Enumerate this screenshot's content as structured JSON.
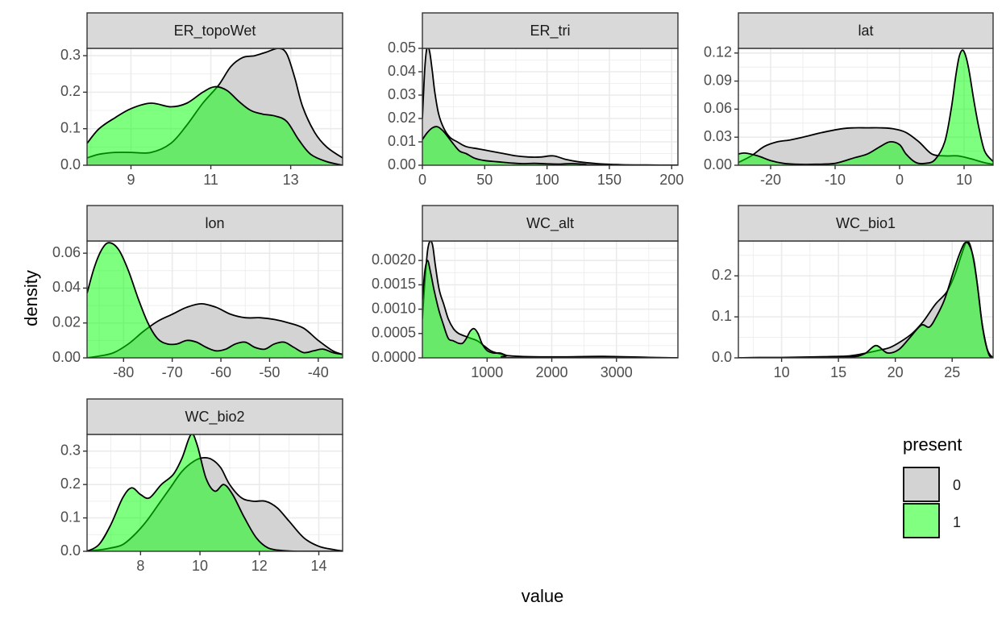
{
  "chart_data": {
    "type": "area",
    "subtype": "faceted density plot",
    "xlabel": "value",
    "ylabel": "density",
    "legend": {
      "title": "present",
      "position": "right",
      "entries": [
        {
          "label": "0",
          "fill": "#d3d3d3"
        },
        {
          "label": "1",
          "fill": "#00ff00"
        }
      ]
    },
    "colors": {
      "series_0_fill": "#d3d3d3",
      "series_1_fill": "#00ff00",
      "series_1_alpha": 0.5,
      "line": "#000000",
      "strip_fill": "#d9d9d9",
      "panel_border": "#333333",
      "grid": "#ebebeb"
    },
    "facets": [
      {
        "title": "ER_topoWet",
        "xlim": [
          7.9,
          14.3
        ],
        "ylim": [
          0,
          0.32
        ],
        "xticks": [
          9,
          11,
          13
        ],
        "xtick_labels": [
          "9",
          "11",
          "13"
        ],
        "yticks": [
          0,
          0.1,
          0.2,
          0.3
        ],
        "ytick_labels": [
          "0.0",
          "0.1",
          "0.2",
          "0.3"
        ],
        "series": [
          {
            "name": "0",
            "x": [
              7.9,
              8.2,
              8.6,
              9.0,
              9.5,
              10.0,
              10.4,
              10.8,
              11.2,
              11.5,
              11.8,
              12.1,
              12.4,
              12.7,
              12.9,
              13.1,
              13.3,
              13.6,
              13.9,
              14.3
            ],
            "y": [
              0.02,
              0.03,
              0.035,
              0.035,
              0.035,
              0.06,
              0.11,
              0.17,
              0.22,
              0.27,
              0.295,
              0.3,
              0.31,
              0.32,
              0.305,
              0.24,
              0.16,
              0.09,
              0.05,
              0.02
            ]
          },
          {
            "name": "1",
            "x": [
              7.9,
              8.2,
              8.6,
              9.0,
              9.5,
              10.0,
              10.4,
              10.8,
              11.1,
              11.4,
              11.7,
              12.0,
              12.3,
              12.6,
              12.9,
              13.2,
              13.5,
              13.9,
              14.3
            ],
            "y": [
              0.06,
              0.1,
              0.13,
              0.155,
              0.17,
              0.16,
              0.17,
              0.2,
              0.215,
              0.205,
              0.175,
              0.15,
              0.14,
              0.135,
              0.12,
              0.07,
              0.03,
              0.01,
              0.0
            ]
          }
        ]
      },
      {
        "title": "ER_tri",
        "xlim": [
          0,
          205
        ],
        "ylim": [
          0,
          0.05
        ],
        "xticks": [
          0,
          50,
          100,
          150,
          200
        ],
        "xtick_labels": [
          "0",
          "50",
          "100",
          "150",
          "200"
        ],
        "yticks": [
          0,
          0.01,
          0.02,
          0.03,
          0.04,
          0.05
        ],
        "ytick_labels": [
          "0.00",
          "0.01",
          "0.02",
          "0.03",
          "0.04",
          "0.05"
        ],
        "series": [
          {
            "name": "0",
            "x": [
              0,
              2,
              4,
              6,
              8,
              10,
              13,
              17,
              22,
              28,
              35,
              45,
              55,
              65,
              75,
              85,
              95,
              105,
              115,
              125,
              140,
              160,
              180,
              205
            ],
            "y": [
              0.02,
              0.042,
              0.051,
              0.048,
              0.04,
              0.031,
              0.022,
              0.016,
              0.012,
              0.01,
              0.008,
              0.007,
              0.006,
              0.005,
              0.004,
              0.0035,
              0.0035,
              0.004,
              0.0025,
              0.0015,
              0.0007,
              0.0002,
              0.0001,
              0.0
            ]
          },
          {
            "name": "1",
            "x": [
              0,
              4,
              8,
              12,
              16,
              20,
              25,
              30,
              35,
              42,
              50,
              60,
              70,
              80,
              90,
              100,
              110,
              120,
              130,
              140,
              205
            ],
            "y": [
              0.011,
              0.014,
              0.016,
              0.0165,
              0.015,
              0.0125,
              0.009,
              0.006,
              0.005,
              0.003,
              0.002,
              0.0015,
              0.001,
              0.0007,
              0.0008,
              0.0006,
              0.0005,
              0.0007,
              0.0004,
              0.0001,
              0.0
            ]
          }
        ]
      },
      {
        "title": "lat",
        "xlim": [
          -25,
          14.5
        ],
        "ylim": [
          0,
          0.125
        ],
        "xticks": [
          -20,
          -10,
          0,
          10
        ],
        "xtick_labels": [
          "-20",
          "-10",
          "0",
          "10"
        ],
        "yticks": [
          0,
          0.03,
          0.06,
          0.09,
          0.12
        ],
        "ytick_labels": [
          "0.00",
          "0.03",
          "0.06",
          "0.09",
          "0.12"
        ],
        "series": [
          {
            "name": "0",
            "x": [
              -25,
              -23,
              -21,
              -19,
              -17,
              -15,
              -12,
              -9,
              -7,
              -5,
              -3,
              -1,
              1,
              3,
              5,
              7,
              9,
              11,
              13,
              14.5
            ],
            "y": [
              0.003,
              0.01,
              0.02,
              0.025,
              0.027,
              0.03,
              0.035,
              0.039,
              0.04,
              0.04,
              0.04,
              0.039,
              0.035,
              0.025,
              0.012,
              0.01,
              0.01,
              0.007,
              0.003,
              0.001
            ]
          },
          {
            "name": "1",
            "x": [
              -25,
              -24,
              -22,
              -20,
              -18,
              -16,
              -13,
              -10,
              -7,
              -5,
              -3,
              -1.5,
              0,
              1,
              2.5,
              4,
              5.5,
              7,
              8,
              8.7,
              9.2,
              9.7,
              10.2,
              10.8,
              11.5,
              12.3,
              13.2,
              14.5
            ],
            "y": [
              0.012,
              0.013,
              0.01,
              0.005,
              0.002,
              0.001,
              0.001,
              0.002,
              0.008,
              0.012,
              0.02,
              0.025,
              0.022,
              0.012,
              0.003,
              0.002,
              0.006,
              0.025,
              0.06,
              0.095,
              0.115,
              0.123,
              0.118,
              0.1,
              0.07,
              0.04,
              0.015,
              0.004
            ]
          }
        ]
      },
      {
        "title": "lon",
        "xlim": [
          -87.5,
          -35
        ],
        "ylim": [
          0,
          0.067
        ],
        "xticks": [
          -80,
          -70,
          -60,
          -50,
          -40
        ],
        "xtick_labels": [
          "-80",
          "-70",
          "-60",
          "-50",
          "-40"
        ],
        "yticks": [
          0,
          0.02,
          0.04,
          0.06
        ],
        "ytick_labels": [
          "0.00",
          "0.02",
          "0.04",
          "0.06"
        ],
        "series": [
          {
            "name": "0",
            "x": [
              -87.5,
              -85,
              -82,
              -79,
              -76,
              -73,
              -70,
              -67,
              -64,
              -61,
              -58,
              -55,
              -52,
              -49,
              -46,
              -43,
              -40,
              -37,
              -35
            ],
            "y": [
              0.0,
              0.001,
              0.003,
              0.008,
              0.015,
              0.021,
              0.025,
              0.029,
              0.031,
              0.029,
              0.025,
              0.023,
              0.023,
              0.022,
              0.02,
              0.017,
              0.01,
              0.004,
              0.002
            ]
          },
          {
            "name": "1",
            "x": [
              -87.5,
              -86,
              -84.5,
              -83,
              -81,
              -79,
              -77,
              -75,
              -73,
              -71,
              -69,
              -67,
              -65,
              -63,
              -61,
              -59,
              -57,
              -55,
              -53,
              -51,
              -49,
              -47,
              -45,
              -43,
              -41,
              -39,
              -37,
              -35
            ],
            "y": [
              0.037,
              0.052,
              0.062,
              0.066,
              0.062,
              0.05,
              0.034,
              0.02,
              0.011,
              0.008,
              0.008,
              0.01,
              0.009,
              0.006,
              0.004,
              0.005,
              0.008,
              0.009,
              0.006,
              0.005,
              0.008,
              0.009,
              0.006,
              0.003,
              0.004,
              0.005,
              0.003,
              0.002
            ]
          }
        ]
      },
      {
        "title": "WC_alt",
        "xlim": [
          0,
          3950
        ],
        "ylim": [
          0,
          0.0024
        ],
        "xticks": [
          1000,
          2000,
          3000
        ],
        "xtick_labels": [
          "1000",
          "2000",
          "3000"
        ],
        "yticks": [
          0,
          0.0005,
          0.001,
          0.0015,
          0.002
        ],
        "ytick_labels": [
          "0.0000",
          "0.0005",
          "0.0010",
          "0.0015",
          "0.0020"
        ],
        "series": [
          {
            "name": "0",
            "x": [
              0,
              40,
              80,
              120,
              160,
              200,
              260,
              330,
              400,
              480,
              560,
              650,
              750,
              850,
              950,
              1050,
              1150,
              1300,
              1500,
              1800,
              2200,
              2800,
              3500,
              3950
            ],
            "y": [
              0.0008,
              0.0016,
              0.0022,
              0.0024,
              0.0023,
              0.0019,
              0.0014,
              0.0011,
              0.0008,
              0.0006,
              0.0005,
              0.00045,
              0.0004,
              0.00035,
              0.00025,
              0.00015,
              0.0001,
              5e-05,
              3e-05,
              2e-05,
              2e-05,
              3e-05,
              1e-05,
              0.0
            ]
          },
          {
            "name": "1",
            "x": [
              0,
              40,
              80,
              120,
              180,
              250,
              320,
              400,
              480,
              560,
              620,
              680,
              740,
              800,
              860,
              920,
              1000,
              1100,
              1200,
              1300,
              1450,
              3950
            ],
            "y": [
              0.0012,
              0.0018,
              0.002,
              0.0018,
              0.0014,
              0.001,
              0.0007,
              0.0004,
              0.00035,
              0.0003,
              0.0003,
              0.0004,
              0.00055,
              0.0006,
              0.0005,
              0.0003,
              0.00015,
              0.0001,
              0.0001,
              5e-05,
              0.0,
              0.0
            ]
          }
        ]
      },
      {
        "title": "WC_bio1",
        "xlim": [
          6.2,
          28.6
        ],
        "ylim": [
          0,
          0.285
        ],
        "xticks": [
          10,
          15,
          20,
          25
        ],
        "xtick_labels": [
          "10",
          "15",
          "20",
          "25"
        ],
        "yticks": [
          0,
          0.1,
          0.2
        ],
        "ytick_labels": [
          "0.0",
          "0.1",
          "0.2"
        ],
        "series": [
          {
            "name": "0",
            "x": [
              6.2,
              8,
              10,
              12,
              14,
              16,
              17.5,
              18.5,
              19.5,
              20.5,
              21.5,
              22.5,
              23.5,
              24.5,
              25.2,
              25.8,
              26.2,
              26.5,
              26.8,
              27.2,
              27.6,
              28.1,
              28.6
            ],
            "y": [
              0.0,
              0.001,
              0.001,
              0.002,
              0.003,
              0.005,
              0.012,
              0.018,
              0.025,
              0.04,
              0.06,
              0.09,
              0.13,
              0.16,
              0.2,
              0.25,
              0.28,
              0.28,
              0.25,
              0.18,
              0.09,
              0.02,
              0.0
            ]
          },
          {
            "name": "1",
            "x": [
              6.2,
              12,
              16,
              17.3,
              18.3,
              19.3,
              20.3,
              21.3,
              22.3,
              23.0,
              23.6,
              24.3,
              25.0,
              25.6,
              26.1,
              26.5,
              26.9,
              27.3,
              27.7,
              28.2,
              28.6
            ],
            "y": [
              0.0,
              0.0,
              0.002,
              0.01,
              0.03,
              0.012,
              0.02,
              0.05,
              0.08,
              0.075,
              0.1,
              0.14,
              0.2,
              0.25,
              0.28,
              0.275,
              0.24,
              0.16,
              0.07,
              0.01,
              0.0
            ]
          }
        ]
      },
      {
        "title": "WC_bio2",
        "xlim": [
          6.2,
          14.8
        ],
        "ylim": [
          0,
          0.35
        ],
        "xticks": [
          8,
          10,
          12,
          14
        ],
        "xtick_labels": [
          "8",
          "10",
          "12",
          "14"
        ],
        "yticks": [
          0,
          0.1,
          0.2,
          0.3
        ],
        "ytick_labels": [
          "0.0",
          "0.1",
          "0.2",
          "0.3"
        ],
        "series": [
          {
            "name": "0",
            "x": [
              6.2,
              6.6,
              7.0,
              7.4,
              7.8,
              8.2,
              8.6,
              9.0,
              9.4,
              9.8,
              10.1,
              10.4,
              10.7,
              11.0,
              11.4,
              11.8,
              12.2,
              12.6,
              13.0,
              13.5,
              14.0,
              14.5,
              14.8
            ],
            "y": [
              0.002,
              0.004,
              0.01,
              0.02,
              0.05,
              0.09,
              0.14,
              0.19,
              0.24,
              0.27,
              0.28,
              0.275,
              0.25,
              0.2,
              0.16,
              0.15,
              0.15,
              0.13,
              0.09,
              0.04,
              0.015,
              0.005,
              0.001
            ]
          },
          {
            "name": "1",
            "x": [
              6.2,
              6.6,
              7.0,
              7.4,
              7.7,
              8.0,
              8.3,
              8.7,
              9.1,
              9.4,
              9.7,
              9.9,
              10.2,
              10.5,
              10.8,
              11.1,
              11.5,
              11.9,
              12.3,
              12.8,
              13.3,
              14.8
            ],
            "y": [
              0.0,
              0.02,
              0.08,
              0.16,
              0.19,
              0.17,
              0.16,
              0.2,
              0.23,
              0.28,
              0.35,
              0.32,
              0.22,
              0.18,
              0.2,
              0.17,
              0.1,
              0.04,
              0.01,
              0.002,
              0.0,
              0.0
            ]
          }
        ]
      }
    ]
  }
}
